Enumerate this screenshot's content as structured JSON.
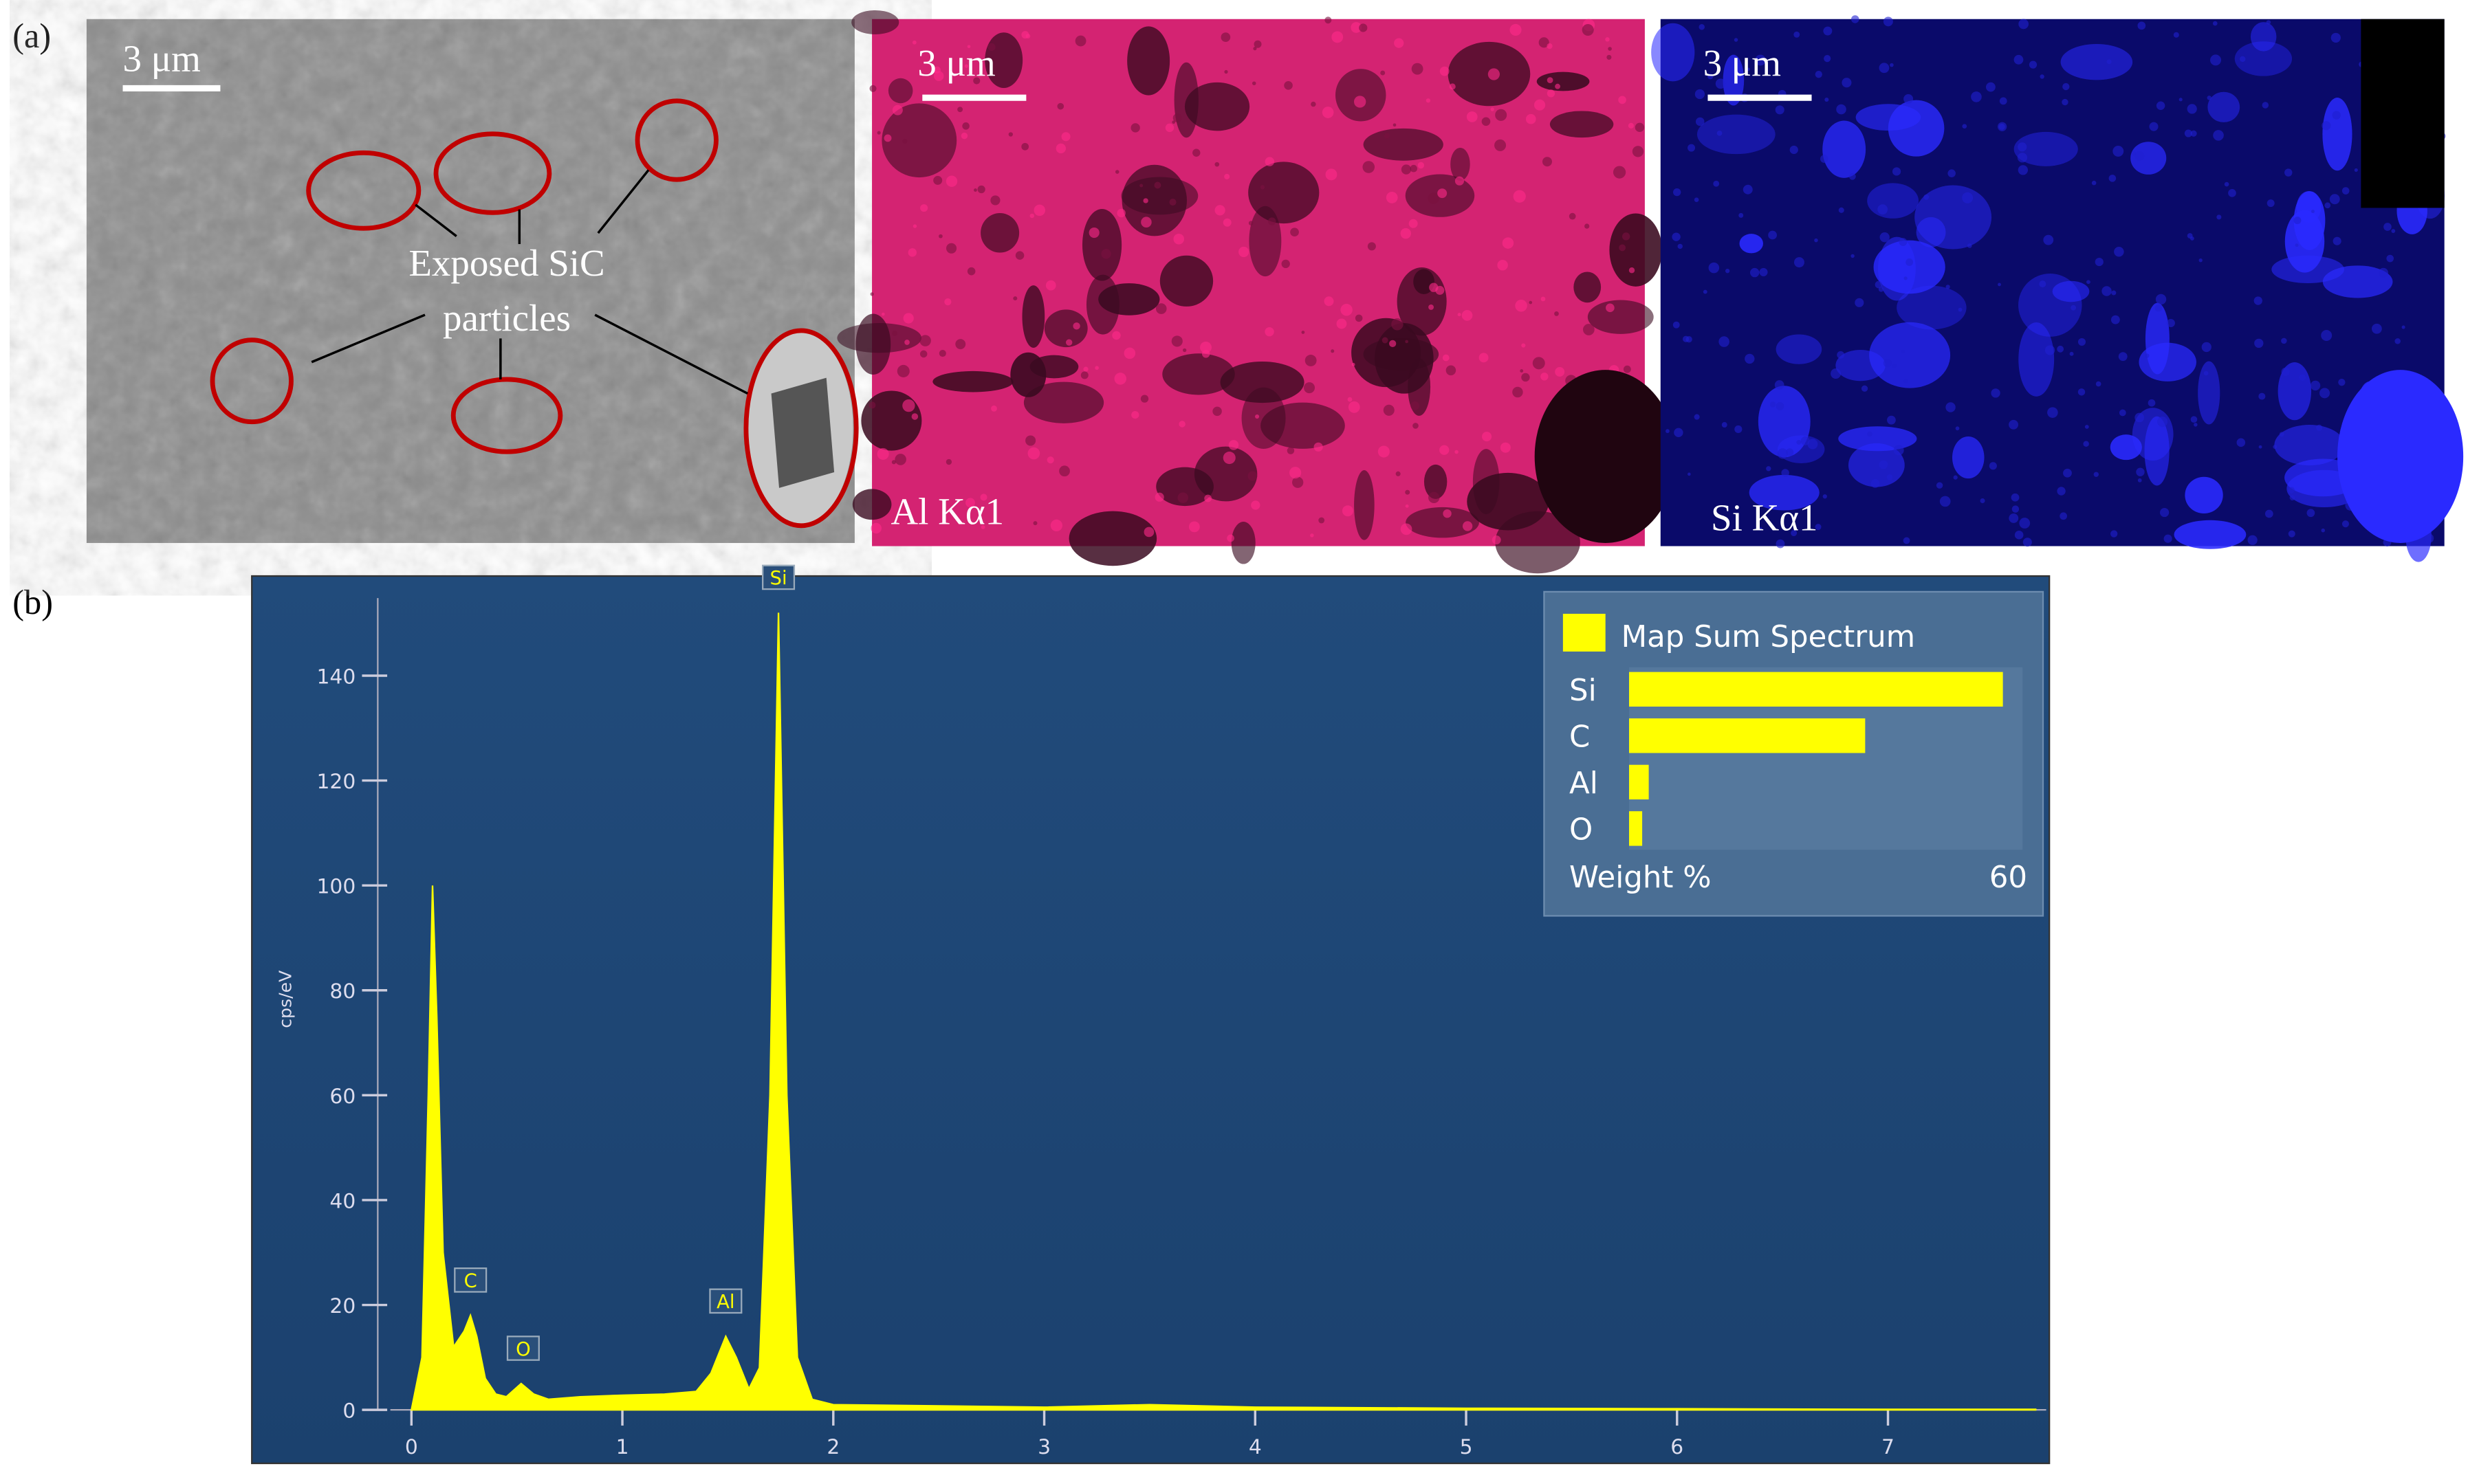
{
  "labels": {
    "a": "(a)",
    "b": "(b)"
  },
  "panel_a": {
    "sem": {
      "scale_bar": "3 μm",
      "annotation_line1": "Exposed SiC",
      "annotation_line2": "particles"
    },
    "al_map": {
      "scale_bar": "3 μm",
      "label": "Al Kα1"
    },
    "si_map": {
      "scale_bar": "3 μm",
      "label": "Si Kα1"
    }
  },
  "chart_data": [
    {
      "type": "area",
      "ylabel": "cps/eV",
      "color": "#ffff00",
      "x": [
        0,
        0.05,
        0.08,
        0.1,
        0.12,
        0.15,
        0.2,
        0.25,
        0.28,
        0.31,
        0.35,
        0.4,
        0.45,
        0.52,
        0.58,
        0.65,
        0.8,
        1.0,
        1.2,
        1.35,
        1.42,
        1.49,
        1.54,
        1.6,
        1.65,
        1.7,
        1.74,
        1.78,
        1.83,
        1.9,
        2.0,
        3.0,
        3.5,
        4.0,
        5.0,
        6.0,
        7.0,
        7.7
      ],
      "values": [
        0,
        10,
        60,
        100,
        75,
        30,
        12,
        15,
        18,
        14,
        6,
        3,
        2.5,
        5,
        3,
        2,
        2.5,
        2.8,
        3,
        3.5,
        7,
        14,
        10,
        4,
        8,
        60,
        152,
        60,
        10,
        2,
        1,
        0.5,
        1,
        0.5,
        0.3,
        0.2,
        0.1,
        0.1
      ],
      "xlim": [
        -0.1,
        7.75
      ],
      "ylim": [
        0,
        156
      ],
      "xticks": [
        0,
        1,
        2,
        3,
        4,
        5,
        6,
        7
      ],
      "yticks": [
        0,
        20,
        40,
        60,
        80,
        100,
        120,
        140
      ],
      "annotations": [
        {
          "text": "C",
          "x": 0.28,
          "y": 18
        },
        {
          "text": "O",
          "x": 0.53,
          "y": 5
        },
        {
          "text": "Al",
          "x": 1.49,
          "y": 14
        },
        {
          "text": "Si",
          "x": 1.74,
          "y": 152
        }
      ]
    },
    {
      "type": "barh",
      "title": "Map Sum Spectrum",
      "xlabel": "Weight %",
      "color": "#ffff00",
      "categories": [
        "Si",
        "C",
        "Al",
        "O"
      ],
      "values": [
        57,
        36,
        3,
        2
      ],
      "xlim": [
        0,
        60
      ],
      "xticks": [
        60
      ]
    }
  ]
}
